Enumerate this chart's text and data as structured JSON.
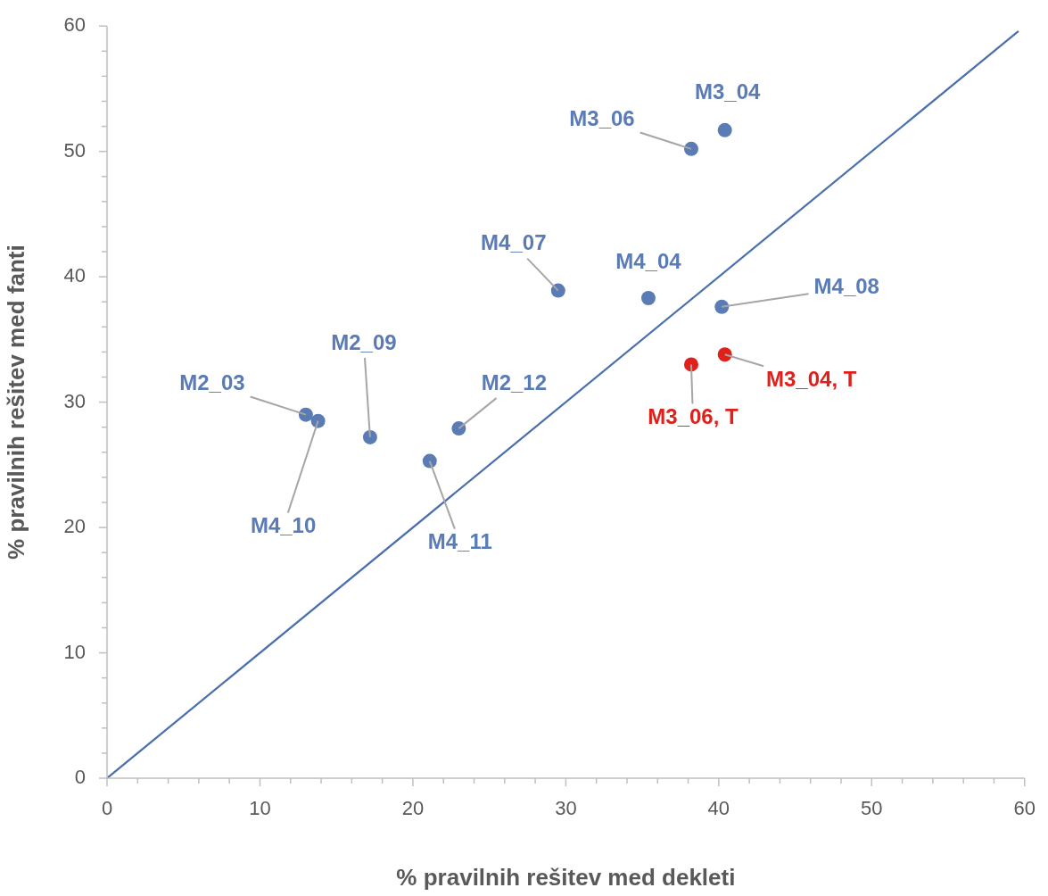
{
  "chart_data": {
    "type": "scatter",
    "xlabel": "% pravilnih rešitev med dekleti",
    "ylabel": "% pravilnih rešitev med fanti",
    "marker": "circle",
    "grid": false,
    "legend": false,
    "xlim": [
      0,
      60
    ],
    "ylim": [
      0,
      60
    ],
    "xticks": [
      0,
      {
        "value": 2,
        "label": null
      },
      {
        "value": 4,
        "label": null
      },
      {
        "value": 6,
        "label": null
      },
      {
        "value": 8,
        "label": null
      },
      10,
      {
        "value": 12,
        "label": null
      },
      {
        "value": 14,
        "label": null
      },
      {
        "value": 16,
        "label": null
      },
      {
        "value": 18,
        "label": null
      },
      20,
      {
        "value": 22,
        "label": null
      },
      {
        "value": 24,
        "label": null
      },
      {
        "value": 26,
        "label": null
      },
      {
        "value": 28,
        "label": null
      },
      30,
      {
        "value": 32,
        "label": null
      },
      {
        "value": 34,
        "label": null
      },
      {
        "value": 36,
        "label": null
      },
      {
        "value": 38,
        "label": null
      },
      40,
      {
        "value": 42,
        "label": null
      },
      {
        "value": 44,
        "label": null
      },
      {
        "value": 46,
        "label": null
      },
      {
        "value": 48,
        "label": null
      },
      50,
      {
        "value": 52,
        "label": null
      },
      {
        "value": 54,
        "label": null
      },
      {
        "value": 56,
        "label": null
      },
      {
        "value": 58,
        "label": null
      },
      60
    ],
    "yticks": [
      0,
      {
        "value": 2,
        "label": null
      },
      {
        "value": 4,
        "label": null
      },
      {
        "value": 6,
        "label": null
      },
      {
        "value": 8,
        "label": null
      },
      10,
      {
        "value": 12,
        "label": null
      },
      {
        "value": 14,
        "label": null
      },
      {
        "value": 16,
        "label": null
      },
      {
        "value": 18,
        "label": null
      },
      20,
      {
        "value": 22,
        "label": null
      },
      {
        "value": 24,
        "label": null
      },
      {
        "value": 26,
        "label": null
      },
      {
        "value": 28,
        "label": null
      },
      30,
      {
        "value": 32,
        "label": null
      },
      {
        "value": 34,
        "label": null
      },
      {
        "value": 36,
        "label": null
      },
      {
        "value": 38,
        "label": null
      },
      40,
      {
        "value": 42,
        "label": null
      },
      {
        "value": 44,
        "label": null
      },
      {
        "value": 46,
        "label": null
      },
      {
        "value": 48,
        "label": null
      },
      50,
      {
        "value": 52,
        "label": null
      },
      {
        "value": 54,
        "label": null
      },
      {
        "value": 56,
        "label": null
      },
      {
        "value": 58,
        "label": null
      },
      60
    ],
    "series": [
      {
        "type": "scatter",
        "color": "#5b7bb4",
        "x": [
          40.4,
          38.2,
          29.5,
          35.4,
          40.2,
          13.0,
          13.8,
          17.2,
          23.0,
          21.1
        ],
        "values": [
          51.7,
          50.2,
          38.9,
          38.3,
          37.6,
          29.0,
          28.5,
          27.2,
          27.9,
          25.3
        ]
      },
      {
        "type": "scatter",
        "color": "#e0201b",
        "x": [
          40.4,
          38.2
        ],
        "values": [
          33.8,
          33.0
        ]
      },
      {
        "type": "line",
        "color": "#4a6fad",
        "marker": "none",
        "line_style": "solid",
        "x": [
          0,
          59.6
        ],
        "values": [
          0,
          59.6
        ]
      }
    ],
    "annotations": [
      {
        "text": "M3_04",
        "x": 40.4,
        "y": 51.7
      },
      {
        "text": "M3_06",
        "x": 38.2,
        "y": 50.2
      },
      {
        "text": "M4_07",
        "x": 29.5,
        "y": 38.9
      },
      {
        "text": "M4_04",
        "x": 35.4,
        "y": 38.3
      },
      {
        "text": "M4_08",
        "x": 40.2,
        "y": 37.6
      },
      {
        "text": "M2_03",
        "x": 13.0,
        "y": 29.0
      },
      {
        "text": "M4_10",
        "x": 13.8,
        "y": 28.5
      },
      {
        "text": "M2_09",
        "x": 17.2,
        "y": 27.2
      },
      {
        "text": "M2_12",
        "x": 23.0,
        "y": 27.9
      },
      {
        "text": "M4_11",
        "x": 21.1,
        "y": 25.3
      },
      {
        "text": "M3_04, T",
        "x": 40.4,
        "y": 33.8
      },
      {
        "text": "M3_06, T",
        "x": 38.2,
        "y": 33.0
      }
    ]
  }
}
